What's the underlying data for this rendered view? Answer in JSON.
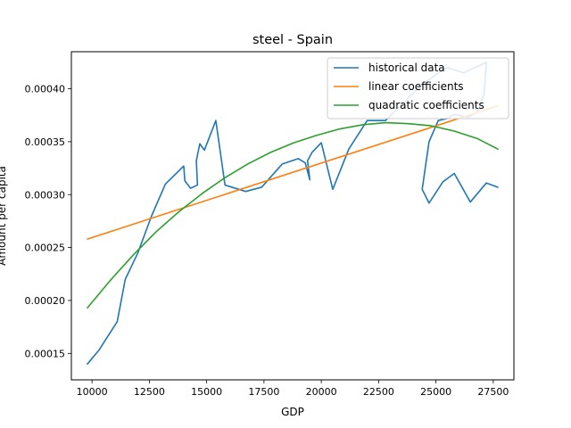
{
  "chart_data": {
    "type": "line",
    "title": "steel - Spain",
    "xlabel": "GDP",
    "ylabel": "Amount per capita",
    "xlim": [
      9100,
      28400
    ],
    "ylim": [
      0.000125,
      0.000435
    ],
    "x_ticks": [
      10000,
      12500,
      15000,
      17500,
      20000,
      22500,
      25000,
      27500
    ],
    "x_tick_labels": [
      "10000",
      "12500",
      "15000",
      "17500",
      "20000",
      "22500",
      "25000",
      "27500"
    ],
    "y_ticks": [
      0.00015,
      0.0002,
      0.00025,
      0.0003,
      0.00035,
      0.0004
    ],
    "y_tick_labels": [
      "0.00015",
      "0.00020",
      "0.00025",
      "0.00030",
      "0.00035",
      "0.00040"
    ],
    "grid": false,
    "legend_position": "top-right",
    "series": [
      {
        "name": "historical data",
        "color": "#1f77b4",
        "x": [
          9800,
          10300,
          11100,
          11450,
          12000,
          12600,
          13200,
          14000,
          14050,
          14300,
          14600,
          14550,
          14700,
          14900,
          15400,
          15800,
          16700,
          17400,
          18300,
          19000,
          19300,
          19500,
          19400,
          19600,
          20000,
          20500,
          21200,
          22000,
          22800,
          23500,
          24200,
          25100,
          25500,
          26200,
          27200,
          27100,
          26800,
          26400,
          25800,
          25500,
          25100,
          24700,
          24400,
          24700,
          25300,
          25800,
          26500,
          27200,
          27700
        ],
        "y": [
          0.00014,
          0.000153,
          0.00018,
          0.00022,
          0.000245,
          0.00028,
          0.00031,
          0.000327,
          0.000313,
          0.000306,
          0.000309,
          0.000332,
          0.000348,
          0.000342,
          0.00037,
          0.000309,
          0.000303,
          0.000307,
          0.000329,
          0.000334,
          0.00033,
          0.000314,
          0.000332,
          0.00034,
          0.000349,
          0.000305,
          0.000343,
          0.00037,
          0.00037,
          0.000385,
          0.0004,
          0.000415,
          0.00042,
          0.000415,
          0.000425,
          0.000395,
          0.000378,
          0.000373,
          0.000376,
          0.000372,
          0.00037,
          0.00035,
          0.000305,
          0.000292,
          0.000312,
          0.00032,
          0.000293,
          0.000311,
          0.000307
        ]
      },
      {
        "name": "linear coefficients",
        "color": "#ff7f0e",
        "x": [
          9800,
          27700
        ],
        "y": [
          0.000258,
          0.000384
        ]
      },
      {
        "name": "quadratic coefficients",
        "color": "#2ca02c",
        "x": [
          9800,
          10800,
          11800,
          12800,
          13800,
          14800,
          15800,
          16800,
          17800,
          18800,
          19800,
          20800,
          21800,
          22800,
          23800,
          24800,
          25800,
          26800,
          27700
        ],
        "y": [
          0.000193,
          0.000219,
          0.000243,
          0.000265,
          0.000284,
          0.000301,
          0.000316,
          0.000329,
          0.00034,
          0.000349,
          0.000356,
          0.000362,
          0.000366,
          0.000368,
          0.000367,
          0.000365,
          0.00036,
          0.000353,
          0.000343
        ]
      }
    ]
  }
}
